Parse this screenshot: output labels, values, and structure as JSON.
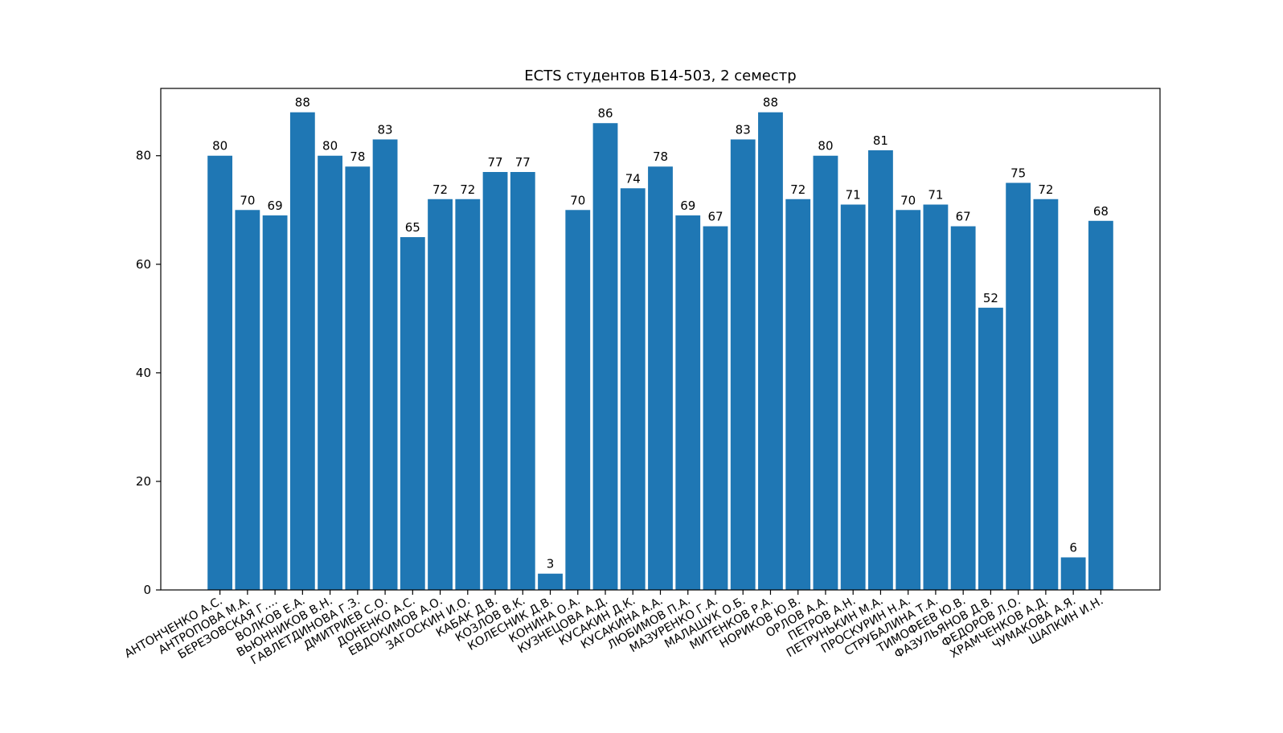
{
  "chart_data": {
    "type": "bar",
    "title": "ECTS студентов Б14-503, 2 семестр",
    "xlabel": "",
    "ylabel": "",
    "ylim": [
      0,
      92.4
    ],
    "yticks": [
      0,
      20,
      40,
      60,
      80
    ],
    "ytick_labels": [
      "0",
      "20",
      "40",
      "60",
      "80"
    ],
    "grid": false,
    "legend": "none",
    "bar_color": "#1f77b4",
    "categories": [
      "АНТОНЧЕНКО А.С.",
      "АНТРОПОВА М.А.",
      "БЕРЕЗОВСКАЯ Г....",
      "ВОЛКОВ Е.А.",
      "ВЬЮННИКОВ В.Н.",
      "ГАВЛЕТДИНОВА Г.З.",
      "ДМИТРИЕВ С.О.",
      "ДОНЕНКО А.С.",
      "ЕВДОКИМОВ А.О.",
      "ЗАГОСКИН И.О.",
      "КАБАК Д.В.",
      "КОЗЛОВ В.К.",
      "КОЛЕСНИК Д.В.",
      "КОНИНА О.А.",
      "КУЗНЕЦОВА А.Д.",
      "КУСАКИН Д.К.",
      "КУСАКИНА А.А.",
      "ЛЮБИМОВ П.А.",
      "МАЗУРЕНКО Г.А.",
      "МАЛАШУК О.Б.",
      "МИТЕНКОВ Р.А.",
      "НОРИКОВ Ю.В.",
      "ОРЛОВ А.А.",
      "ПЕТРОВ А.Н.",
      "ПЕТРУНЬКИН М.А.",
      "ПРОСКУРИН Н.А.",
      "СТРУБАЛИНА Т.А.",
      "ТИМОФЕЕВ Ю.В.",
      "ФАЗУЛЬЯНОВ Д.В.",
      "ФЕДОРОВ Л.О.",
      "ХРАМЧЕНКОВ А.Д.",
      "ЧУМАКОВА А.Я.",
      "ШАПКИН И.Н."
    ],
    "values": [
      80,
      70,
      69,
      88,
      80,
      78,
      83,
      65,
      72,
      72,
      77,
      77,
      3,
      70,
      86,
      74,
      78,
      69,
      67,
      83,
      88,
      72,
      80,
      71,
      81,
      70,
      71,
      67,
      52,
      75,
      72,
      6,
      68
    ],
    "value_labels": [
      "80",
      "70",
      "69",
      "88",
      "80",
      "78",
      "83",
      "65",
      "72",
      "72",
      "77",
      "77",
      "3",
      "70",
      "86",
      "74",
      "78",
      "69",
      "67",
      "83",
      "88",
      "72",
      "80",
      "71",
      "81",
      "70",
      "71",
      "67",
      "52",
      "75",
      "72",
      "6",
      "68"
    ]
  }
}
